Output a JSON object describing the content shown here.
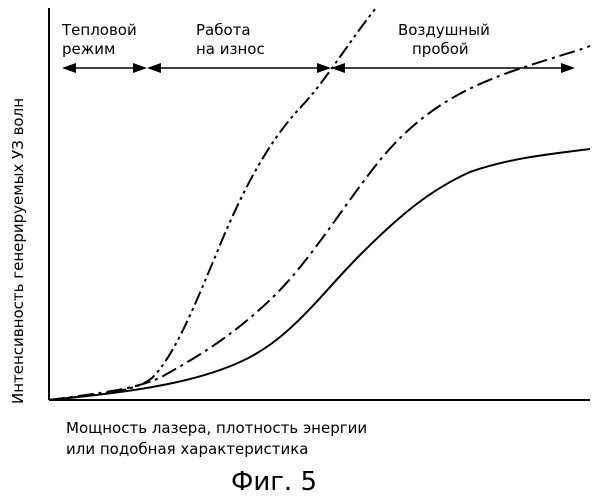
{
  "diagram": {
    "y_axis_label": "Интенсивность генерируемых УЗ волн",
    "x_axis_label_line1": "Мощность лазера, плотность энергии",
    "x_axis_label_line2": "или подобная характеристика",
    "caption": "Фиг. 5",
    "regions": [
      {
        "line1": "Тепловой",
        "line2": "режим"
      },
      {
        "line1": "Работа",
        "line2": "на износ"
      },
      {
        "line1": "Воздушный",
        "line2": "пробой"
      }
    ],
    "curves": [
      {
        "style": "solid"
      },
      {
        "style": "dash-dot"
      },
      {
        "style": "dash-dot-dot"
      }
    ],
    "colors": {
      "line": "#000000",
      "background": "#ffffff"
    }
  }
}
